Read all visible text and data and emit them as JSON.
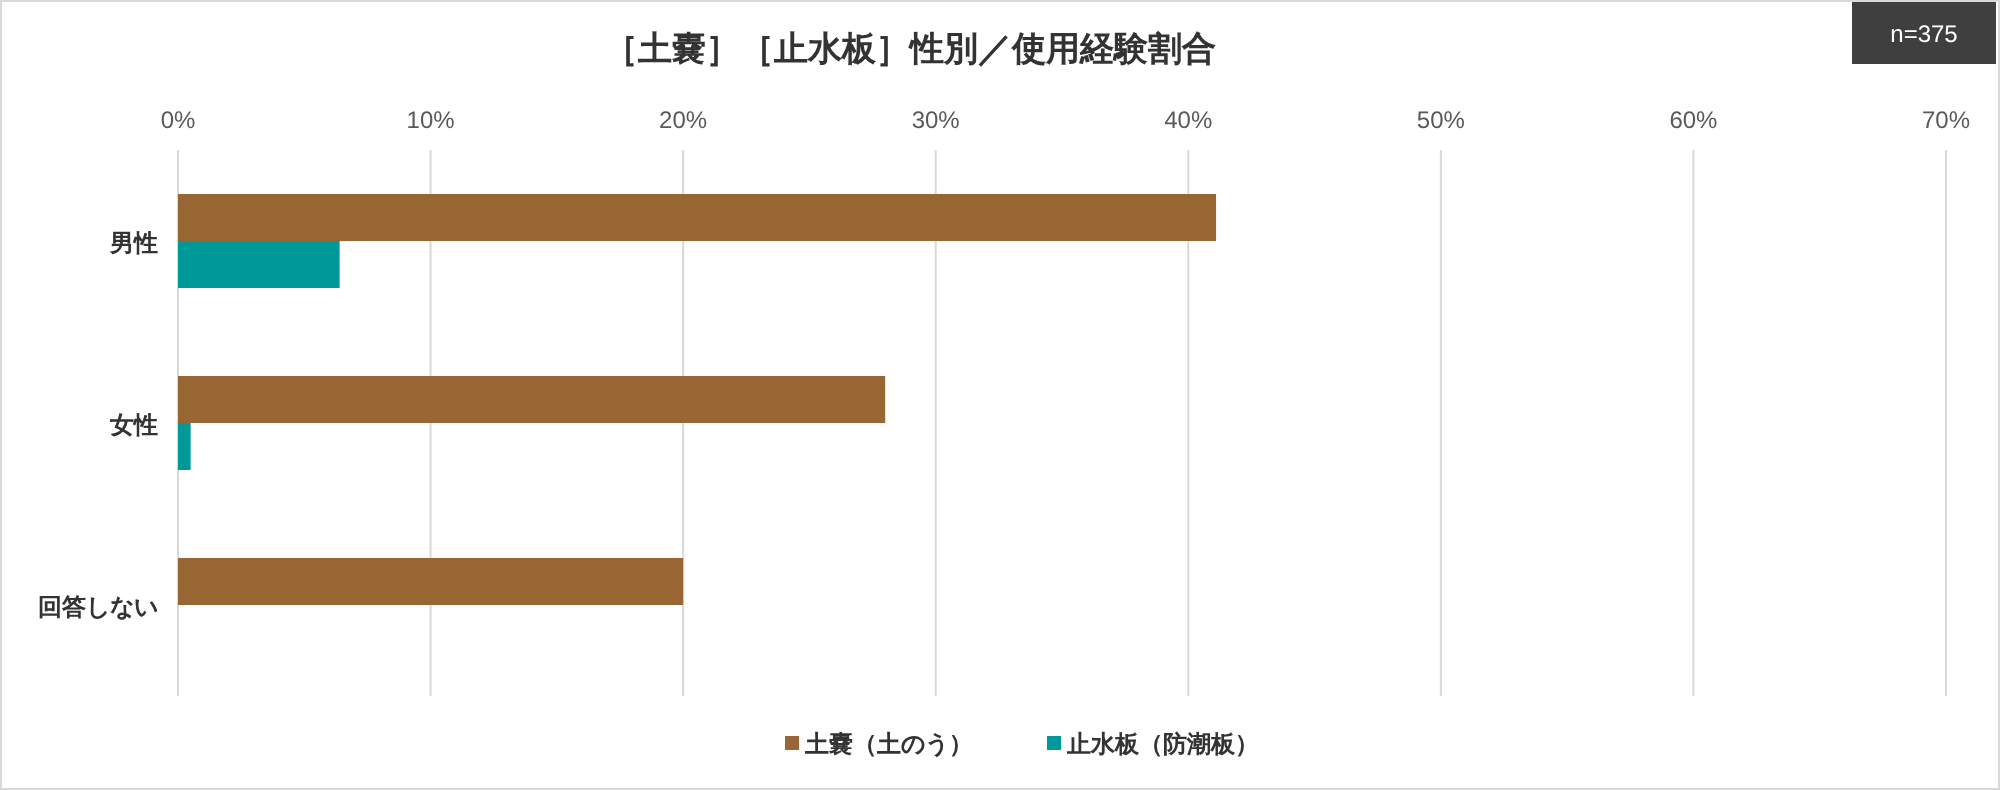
{
  "chart_data": {
    "type": "bar",
    "orientation": "horizontal",
    "title": "［土嚢］［止水板］性別／使用経験割合",
    "annotations": [
      "n=375"
    ],
    "categories": [
      "男性",
      "女性",
      "回答しない"
    ],
    "series": [
      {
        "name": "土嚢（土のう）",
        "color": "#996633",
        "values": [
          41.1,
          28.0,
          20.0
        ]
      },
      {
        "name": "止水板（防潮板）",
        "color": "#009999",
        "values": [
          6.4,
          0.5,
          0
        ]
      }
    ],
    "xlim": [
      0,
      70
    ],
    "xticks": [
      {
        "value": 0,
        "label": "0%"
      },
      {
        "value": 10,
        "label": "10%"
      },
      {
        "value": 20,
        "label": "20%"
      },
      {
        "value": 30,
        "label": "30%"
      },
      {
        "value": 40,
        "label": "40%"
      },
      {
        "value": 50,
        "label": "50%"
      },
      {
        "value": 60,
        "label": "60%"
      },
      {
        "value": 70,
        "label": "70%"
      }
    ],
    "grid": "x",
    "legend": "bottom"
  }
}
